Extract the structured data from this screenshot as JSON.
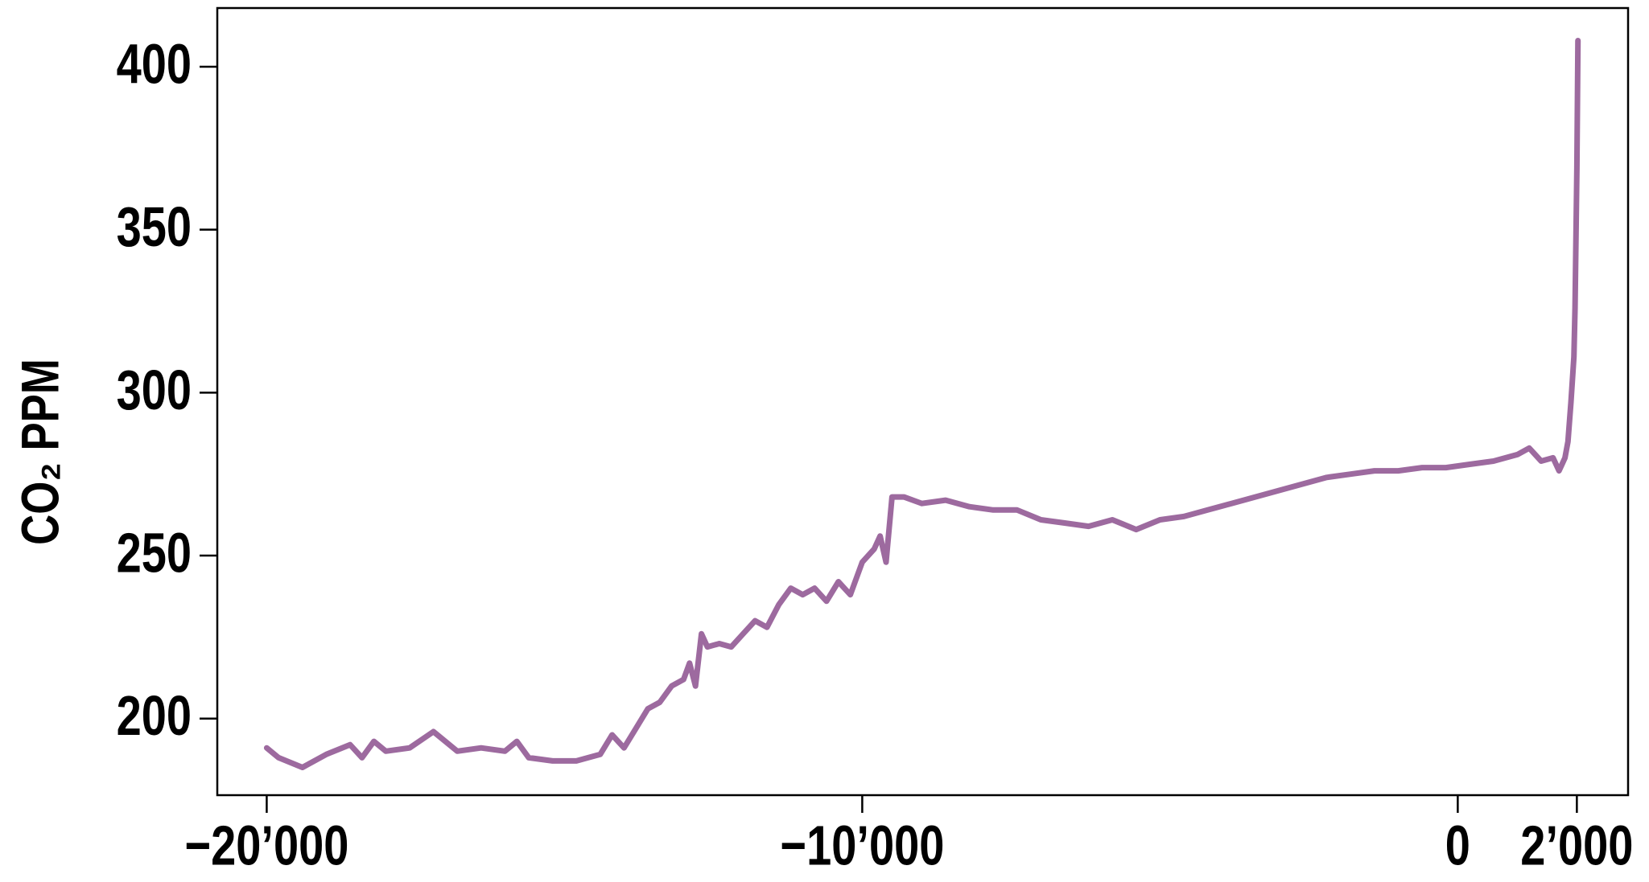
{
  "chart_data": {
    "type": "line",
    "y_label": "CO₂ PPM",
    "x": [
      -20000,
      -19800,
      -19400,
      -19000,
      -18600,
      -18400,
      -18200,
      -18000,
      -17600,
      -17200,
      -16800,
      -16400,
      -16000,
      -15800,
      -15600,
      -15200,
      -14800,
      -14400,
      -14200,
      -14000,
      -13800,
      -13600,
      -13400,
      -13200,
      -13000,
      -12900,
      -12800,
      -12700,
      -12600,
      -12400,
      -12200,
      -12000,
      -11800,
      -11600,
      -11400,
      -11200,
      -11000,
      -10800,
      -10600,
      -10400,
      -10200,
      -10000,
      -9800,
      -9700,
      -9600,
      -9500,
      -9300,
      -9000,
      -8600,
      -8200,
      -7800,
      -7400,
      -7000,
      -6600,
      -6200,
      -5800,
      -5400,
      -5000,
      -4600,
      -4200,
      -3800,
      -3400,
      -3000,
      -2600,
      -2200,
      -1800,
      -1400,
      -1000,
      -600,
      -200,
      200,
      600,
      1000,
      1200,
      1400,
      1600,
      1700,
      1750,
      1800,
      1850,
      1900,
      1950,
      1970,
      1990,
      2000,
      2010,
      2018
    ],
    "series": [
      {
        "name": "CO2",
        "color": "#9d6a9f",
        "values": [
          191,
          188,
          185,
          189,
          192,
          188,
          193,
          190,
          191,
          196,
          190,
          191,
          190,
          193,
          188,
          187,
          187,
          189,
          195,
          191,
          197,
          203,
          205,
          210,
          212,
          217,
          210,
          226,
          222,
          223,
          222,
          226,
          230,
          228,
          235,
          240,
          238,
          240,
          236,
          242,
          238,
          248,
          252,
          256,
          248,
          268,
          268,
          266,
          267,
          265,
          264,
          264,
          261,
          260,
          259,
          261,
          258,
          261,
          262,
          264,
          266,
          268,
          270,
          272,
          274,
          275,
          276,
          276,
          277,
          277,
          278,
          279,
          281,
          283,
          279,
          280,
          276,
          278,
          280,
          285,
          297,
          311,
          326,
          354,
          369,
          390,
          408
        ]
      }
    ],
    "xlim": [
      -20830,
      2860
    ],
    "xticks": [
      {
        "value": -20000,
        "label": "−20’000"
      },
      {
        "value": -10000,
        "label": "−10’000"
      },
      0,
      {
        "value": 2000,
        "label": "2’000"
      }
    ],
    "ylim": [
      176.5,
      418
    ],
    "yticks": [
      200,
      250,
      300,
      350,
      400
    ],
    "grid": false
  }
}
